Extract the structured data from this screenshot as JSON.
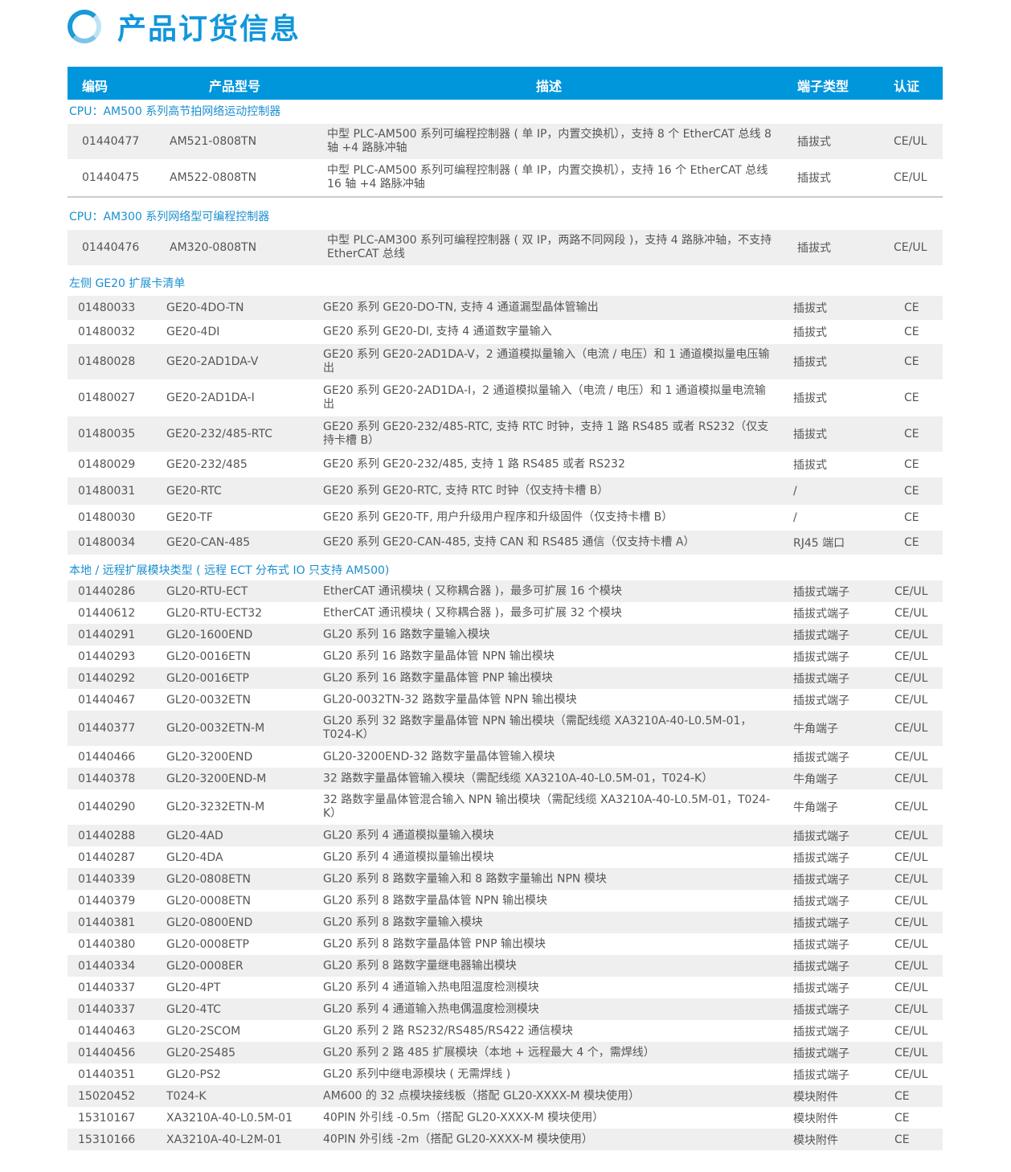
{
  "title": "产品订货信息",
  "header": {
    "code": "编码",
    "model": "产品型号",
    "desc": "描述",
    "terminal": "端子类型",
    "cert": "认证"
  },
  "sections": [
    {
      "title": "CPU：AM500 系列高节拍网络运动控制器",
      "rows": [
        {
          "code": "01440477",
          "model": "AM521-0808TN",
          "desc": "中型 PLC-AM500 系列可编程控制器 ( 单 IP，内置交换机），支持 8 个 EtherCAT 总线 8 轴 +4 路脉冲轴",
          "terminal": "插拔式",
          "cert": "CE/UL"
        },
        {
          "code": "01440475",
          "model": "AM522-0808TN",
          "desc": "中型 PLC-AM500 系列可编程控制器 ( 单 IP，内置交换机），支持 16 个 EtherCAT 总线 16 轴 +4 路脉冲轴",
          "terminal": "插拔式",
          "cert": "CE/UL"
        }
      ]
    },
    {
      "title": "CPU：AM300 系列网络型可编程控制器",
      "rows": [
        {
          "code": "01440476",
          "model": "AM320-0808TN",
          "desc": "中型 PLC-AM300 系列可编程控制器 ( 双 IP，两路不同网段 )，支持 4 路脉冲轴，不支持 EtherCAT 总线",
          "terminal": "插拔式",
          "cert": "CE/UL"
        }
      ]
    },
    {
      "title": "左侧 GE20 扩展卡清单",
      "rows": [
        {
          "code": "01480033",
          "model": "GE20-4DO-TN",
          "desc": "GE20 系列 GE20-DO-TN, 支持 4 通道漏型晶体管输出",
          "terminal": "插拔式",
          "cert": "CE"
        },
        {
          "code": "01480032",
          "model": "GE20-4DI",
          "desc": "GE20 系列 GE20-DI, 支持 4 通道数字量输入",
          "terminal": "插拔式",
          "cert": "CE"
        },
        {
          "code": "01480028",
          "model": "GE20-2AD1DA-V",
          "desc": "GE20 系列 GE20-2AD1DA-V，2 通道模拟量输入（电流 / 电压）和 1 通道模拟量电压输出",
          "terminal": "插拔式",
          "cert": "CE"
        },
        {
          "code": "01480027",
          "model": "GE20-2AD1DA-I",
          "desc": "GE20 系列 GE20-2AD1DA-I，2 通道模拟量输入（电流 / 电压）和 1 通道模拟量电流输出",
          "terminal": "插拔式",
          "cert": "CE"
        },
        {
          "code": "01480035",
          "model": "GE20-232/485-RTC",
          "desc": "GE20 系列 GE20-232/485-RTC, 支持 RTC 时钟，支持 1 路 RS485 或者 RS232（仅支持卡槽 B）",
          "terminal": "插拔式",
          "cert": "CE"
        },
        {
          "code": "01480029",
          "model": "GE20-232/485",
          "desc": "GE20 系列 GE20-232/485, 支持 1 路 RS485 或者 RS232",
          "terminal": "插拔式",
          "cert": "CE"
        },
        {
          "code": "01480031",
          "model": "GE20-RTC",
          "desc": "GE20 系列 GE20-RTC, 支持 RTC 时钟（仅支持卡槽 B）",
          "terminal": "/",
          "cert": "CE"
        },
        {
          "code": "01480030",
          "model": "GE20-TF",
          "desc": "GE20 系列 GE20-TF, 用户升级用户程序和升级固件（仅支持卡槽 B）",
          "terminal": "/",
          "cert": "CE"
        },
        {
          "code": "01480034",
          "model": "GE20-CAN-485",
          "desc": "GE20 系列 GE20-CAN-485, 支持 CAN 和 RS485 通信（仅支持卡槽 A）",
          "terminal": "RJ45 端口",
          "cert": "CE"
        }
      ]
    },
    {
      "title": "本地 / 远程扩展模块类型 ( 远程 ECT 分布式 IO 只支持 AM500)",
      "rows": [
        {
          "code": "01440286",
          "model": "GL20-RTU-ECT",
          "desc": "EtherCAT 通讯模块 ( 又称耦合器 )，最多可扩展 16 个模块",
          "terminal": "插拔式端子",
          "cert": "CE/UL"
        },
        {
          "code": "01440612",
          "model": "GL20-RTU-ECT32",
          "desc": "EtherCAT 通讯模块 ( 又称耦合器 )，最多可扩展 32 个模块",
          "terminal": "插拔式端子",
          "cert": "CE/UL"
        },
        {
          "code": "01440291",
          "model": "GL20-1600END",
          "desc": "GL20 系列 16 路数字量输入模块",
          "terminal": "插拔式端子",
          "cert": "CE/UL"
        },
        {
          "code": "01440293",
          "model": "GL20-0016ETN",
          "desc": "GL20 系列 16 路数字量晶体管 NPN 输出模块",
          "terminal": "插拔式端子",
          "cert": "CE/UL"
        },
        {
          "code": "01440292",
          "model": "GL20-0016ETP",
          "desc": "GL20 系列 16 路数字量晶体管 PNP 输出模块",
          "terminal": "插拔式端子",
          "cert": "CE/UL"
        },
        {
          "code": "01440467",
          "model": "GL20-0032ETN",
          "desc": "GL20-0032TN-32 路数字量晶体管 NPN 输出模块",
          "terminal": "插拔式端子",
          "cert": "CE/UL"
        },
        {
          "code": "01440377",
          "model": "GL20-0032ETN-M",
          "desc": "GL20 系列 32 路数字量晶体管 NPN 输出模块（需配线缆 XA3210A-40-L0.5M-01，T024-K）",
          "terminal": "牛角端子",
          "cert": "CE/UL"
        },
        {
          "code": "01440466",
          "model": "GL20-3200END",
          "desc": "GL20-3200END-32 路数字量晶体管输入模块",
          "terminal": "插拔式端子",
          "cert": "CE/UL"
        },
        {
          "code": "01440378",
          "model": "GL20-3200END-M",
          "desc": "32 路数字量晶体管输入模块（需配线缆 XA3210A-40-L0.5M-01，T024-K）",
          "terminal": "牛角端子",
          "cert": "CE/UL"
        },
        {
          "code": "01440290",
          "model": "GL20-3232ETN-M",
          "desc": "32 路数字量晶体管混合输入 NPN 输出模块（需配线缆 XA3210A-40-L0.5M-01，T024-K）",
          "terminal": "牛角端子",
          "cert": "CE/UL"
        },
        {
          "code": "01440288",
          "model": "GL20-4AD",
          "desc": "GL20 系列 4 通道模拟量输入模块",
          "terminal": "插拔式端子",
          "cert": "CE/UL"
        },
        {
          "code": "01440287",
          "model": "GL20-4DA",
          "desc": "GL20 系列 4 通道模拟量输出模块",
          "terminal": "插拔式端子",
          "cert": "CE/UL"
        },
        {
          "code": "01440339",
          "model": "GL20-0808ETN",
          "desc": "GL20 系列 8 路数字量输入和 8 路数字量输出 NPN 模块",
          "terminal": "插拔式端子",
          "cert": "CE/UL"
        },
        {
          "code": "01440379",
          "model": "GL20-0008ETN",
          "desc": "GL20 系列 8 路数字量晶体管 NPN 输出模块",
          "terminal": "插拔式端子",
          "cert": "CE/UL"
        },
        {
          "code": "01440381",
          "model": "GL20-0800END",
          "desc": "GL20 系列 8 路数字量输入模块",
          "terminal": "插拔式端子",
          "cert": "CE/UL"
        },
        {
          "code": "01440380",
          "model": "GL20-0008ETP",
          "desc": "GL20 系列 8 路数字量晶体管 PNP 输出模块",
          "terminal": "插拔式端子",
          "cert": "CE/UL"
        },
        {
          "code": "01440334",
          "model": "GL20-0008ER",
          "desc": "GL20 系列 8 路数字量继电器输出模块",
          "terminal": "插拔式端子",
          "cert": "CE/UL"
        },
        {
          "code": "01440337",
          "model": "GL20-4PT",
          "desc": "GL20 系列 4 通道输入热电阻温度检测模块",
          "terminal": "插拔式端子",
          "cert": "CE/UL"
        },
        {
          "code": "01440337",
          "model": "GL20-4TC",
          "desc": "GL20 系列 4 通道输入热电偶温度检测模块",
          "terminal": "插拔式端子",
          "cert": "CE/UL"
        },
        {
          "code": "01440463",
          "model": "GL20-2SCOM",
          "desc": "GL20 系列 2 路 RS232/RS485/RS422 通信模块",
          "terminal": "插拔式端子",
          "cert": "CE/UL"
        },
        {
          "code": "01440456",
          "model": "GL20-2S485",
          "desc": "GL20 系列 2 路 485 扩展模块（本地 + 远程最大 4 个，需焊线）",
          "terminal": "插拔式端子",
          "cert": "CE/UL"
        },
        {
          "code": "01440351",
          "model": "GL20-PS2",
          "desc": "GL20 系列中继电源模块 ( 无需焊线 )",
          "terminal": "插拔式端子",
          "cert": "CE/UL"
        },
        {
          "code": "15020452",
          "model": "T024-K",
          "desc": "AM600 的 32 点模块接线板（搭配 GL20-XXXX-M 模块使用）",
          "terminal": "模块附件",
          "cert": "CE"
        },
        {
          "code": "15310167",
          "model": "XA3210A-40-L0.5M-01",
          "desc": "40PIN 外引线 -0.5m（搭配 GL20-XXXX-M 模块使用）",
          "terminal": "模块附件",
          "cert": "CE"
        },
        {
          "code": "15310166",
          "model": "XA3210A-40-L2M-01",
          "desc": "40PIN 外引线 -2m（搭配 GL20-XXXX-M 模块使用）",
          "terminal": "模块附件",
          "cert": "CE"
        }
      ]
    }
  ]
}
